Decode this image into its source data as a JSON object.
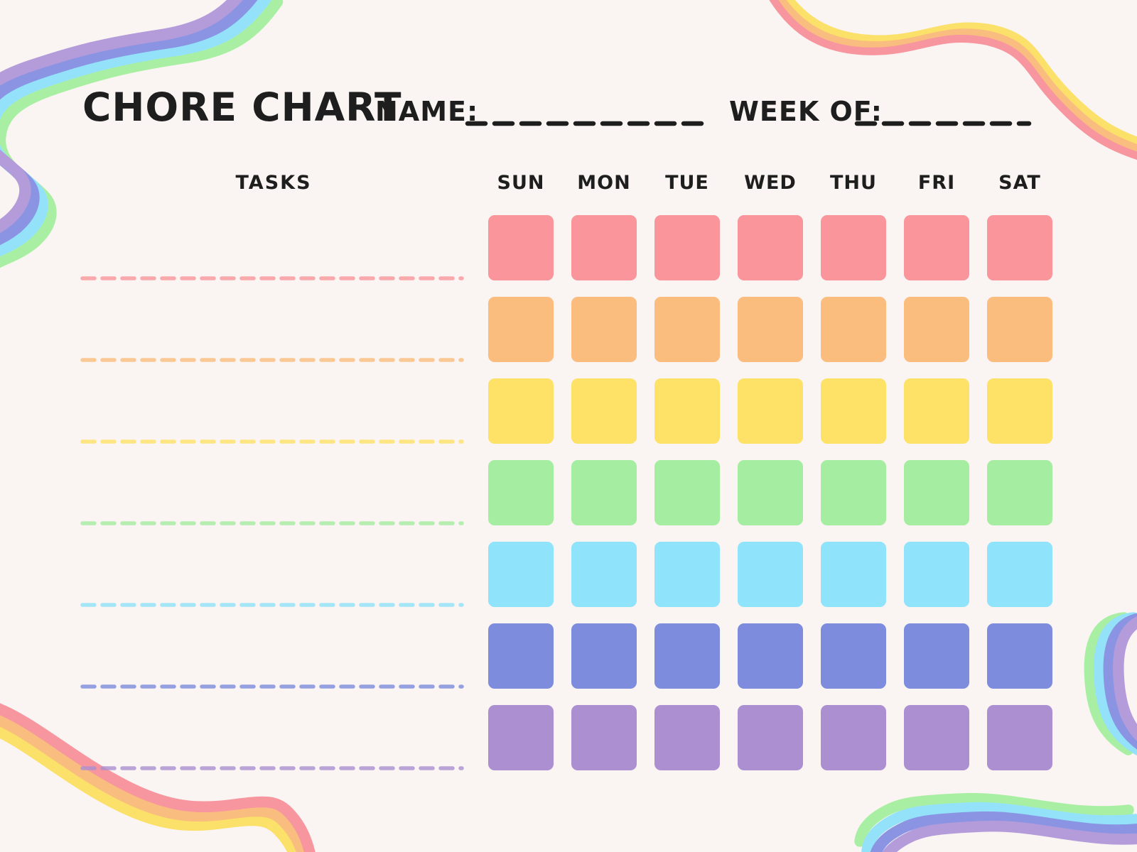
{
  "title": "CHORE CHART",
  "fields": {
    "name_label": "NAME:",
    "name_value": "",
    "week_of_label": "WEEK OF:",
    "week_of_value": ""
  },
  "tasks_header": "TASKS",
  "days": [
    "SUN",
    "MON",
    "TUE",
    "WED",
    "THU",
    "FRI",
    "SAT"
  ],
  "rows": [
    {
      "name": "row-red",
      "color": "#F9959B",
      "task_value": ""
    },
    {
      "name": "row-orange",
      "color": "#FABD7D",
      "task_value": ""
    },
    {
      "name": "row-yellow",
      "color": "#FDE267",
      "task_value": ""
    },
    {
      "name": "row-green",
      "color": "#A5EDA0",
      "task_value": ""
    },
    {
      "name": "row-lightblue",
      "color": "#8FE3FA",
      "task_value": ""
    },
    {
      "name": "row-indigo",
      "color": "#7D8CDC",
      "task_value": ""
    },
    {
      "name": "row-purple",
      "color": "#AB8FD1",
      "task_value": ""
    }
  ],
  "colors": {
    "page_bg": "#FAF5F2",
    "text": "#1E1E1E",
    "fill_line": "#1E1E1E"
  },
  "ribbons": {
    "cool": {
      "purple": "#B49CDB",
      "indigo": "#8A94E2",
      "lightblue": "#94E2FA",
      "green": "#A9EFA3"
    },
    "warm": {
      "yellow": "#FBE06A",
      "orange": "#F9BD80",
      "pink": "#F7969E"
    }
  }
}
